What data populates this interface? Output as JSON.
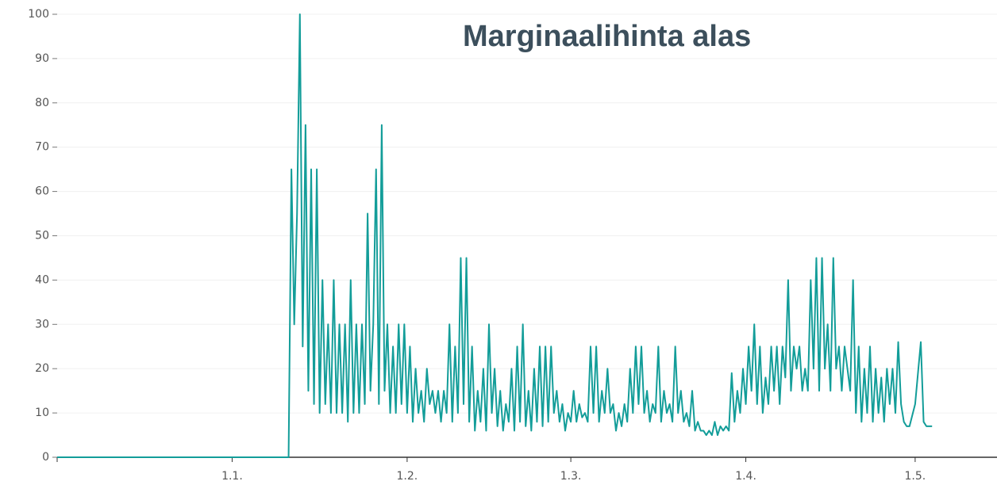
{
  "chart_data": {
    "type": "line",
    "title": "Marginaalihinta alas",
    "xlim": [
      -31,
      135.5
    ],
    "xticks": [
      {
        "value": 0,
        "label": "1.1."
      },
      {
        "value": 31,
        "label": "1.2."
      },
      {
        "value": 60,
        "label": "1.3."
      },
      {
        "value": 91,
        "label": "1.4."
      },
      {
        "value": 121,
        "label": "1.5."
      }
    ],
    "ylim": [
      0,
      100
    ],
    "yticks": [
      0,
      10,
      20,
      30,
      40,
      50,
      60,
      70,
      80,
      90,
      100
    ],
    "grid": true,
    "x": [
      -31,
      10,
      10.5,
      11,
      11.5,
      12,
      12.5,
      13,
      13.5,
      14,
      14.5,
      15,
      15.5,
      16,
      16.5,
      17,
      17.5,
      18,
      18.5,
      19,
      19.5,
      20,
      20.5,
      21,
      21.5,
      22,
      22.5,
      23,
      23.5,
      24,
      24.5,
      25,
      25.5,
      26,
      26.5,
      27,
      27.5,
      28,
      28.5,
      29,
      29.5,
      30,
      30.5,
      31,
      31.5,
      32,
      32.5,
      33,
      33.5,
      34,
      34.5,
      35,
      35.5,
      36,
      36.5,
      37,
      37.5,
      38,
      38.5,
      39,
      39.5,
      40,
      40.5,
      41,
      41.5,
      42,
      42.5,
      43,
      43.5,
      44,
      44.5,
      45,
      45.5,
      46,
      46.5,
      47,
      47.5,
      48,
      48.5,
      49,
      49.5,
      50,
      50.5,
      51,
      51.5,
      52,
      52.5,
      53,
      53.5,
      54,
      54.5,
      55,
      55.5,
      56,
      56.5,
      57,
      57.5,
      58,
      58.5,
      59,
      59.5,
      60,
      60.5,
      61,
      61.5,
      62,
      62.5,
      63,
      63.5,
      64,
      64.5,
      65,
      65.5,
      66,
      66.5,
      67,
      67.5,
      68,
      68.5,
      69,
      69.5,
      70,
      70.5,
      71,
      71.5,
      72,
      72.5,
      73,
      73.5,
      74,
      74.5,
      75,
      75.5,
      76,
      76.5,
      77,
      77.5,
      78,
      78.5,
      79,
      79.5,
      80,
      80.5,
      81,
      81.5,
      82,
      82.5,
      83,
      83.5,
      84,
      84.5,
      85,
      85.5,
      86,
      86.5,
      87,
      87.5,
      88,
      88.5,
      89,
      89.5,
      90,
      90.5,
      91,
      91.5,
      92,
      92.5,
      93,
      93.5,
      94,
      94.5,
      95,
      95.5,
      96,
      96.5,
      97,
      97.5,
      98,
      98.5,
      99,
      99.5,
      100,
      100.5,
      101,
      101.5,
      102,
      102.5,
      103,
      103.5,
      104,
      104.5,
      105,
      105.5,
      106,
      106.5,
      107,
      107.5,
      108,
      108.5,
      109,
      109.5,
      110,
      110.5,
      111,
      111.5,
      112,
      112.5,
      113,
      113.5,
      114,
      114.5,
      115,
      115.5,
      116,
      116.5,
      117,
      117.5,
      118,
      118.5,
      119,
      119.5,
      120,
      121,
      122,
      122.5,
      123,
      124
    ],
    "series": [
      {
        "color": "#139d99",
        "values": [
          0,
          0,
          65,
          30,
          55,
          100,
          25,
          75,
          15,
          65,
          12,
          65,
          10,
          40,
          12,
          30,
          10,
          40,
          10,
          30,
          10,
          30,
          8,
          40,
          10,
          30,
          10,
          30,
          12,
          55,
          15,
          30,
          65,
          12,
          75,
          15,
          30,
          10,
          25,
          10,
          30,
          12,
          30,
          10,
          25,
          8,
          20,
          10,
          15,
          8,
          20,
          12,
          15,
          10,
          15,
          8,
          15,
          10,
          30,
          8,
          25,
          10,
          45,
          12,
          45,
          8,
          25,
          6,
          15,
          8,
          20,
          6,
          30,
          10,
          20,
          7,
          15,
          6,
          12,
          8,
          20,
          6,
          25,
          8,
          30,
          7,
          15,
          6,
          20,
          8,
          25,
          7,
          25,
          8,
          25,
          10,
          15,
          8,
          12,
          6,
          10,
          8,
          15,
          8,
          12,
          9,
          10,
          8,
          25,
          10,
          25,
          8,
          15,
          10,
          20,
          10,
          12,
          6,
          10,
          7,
          12,
          8,
          20,
          10,
          25,
          12,
          25,
          10,
          15,
          8,
          12,
          10,
          25,
          8,
          15,
          10,
          12,
          8,
          25,
          10,
          15,
          8,
          10,
          7,
          15,
          6,
          8,
          6,
          6,
          5,
          6,
          5,
          8,
          5,
          7,
          6,
          7,
          6,
          19,
          8,
          15,
          10,
          20,
          12,
          25,
          15,
          30,
          12,
          25,
          10,
          18,
          12,
          25,
          15,
          25,
          12,
          25,
          18,
          40,
          15,
          25,
          20,
          25,
          15,
          20,
          15,
          40,
          20,
          45,
          15,
          45,
          20,
          30,
          15,
          45,
          20,
          25,
          15,
          25,
          20,
          15,
          40,
          10,
          25,
          8,
          20,
          10,
          25,
          8,
          20,
          10,
          18,
          8,
          20,
          12,
          20,
          10,
          26,
          12,
          8,
          7,
          7,
          12,
          26,
          8,
          7,
          7
        ]
      }
    ]
  }
}
